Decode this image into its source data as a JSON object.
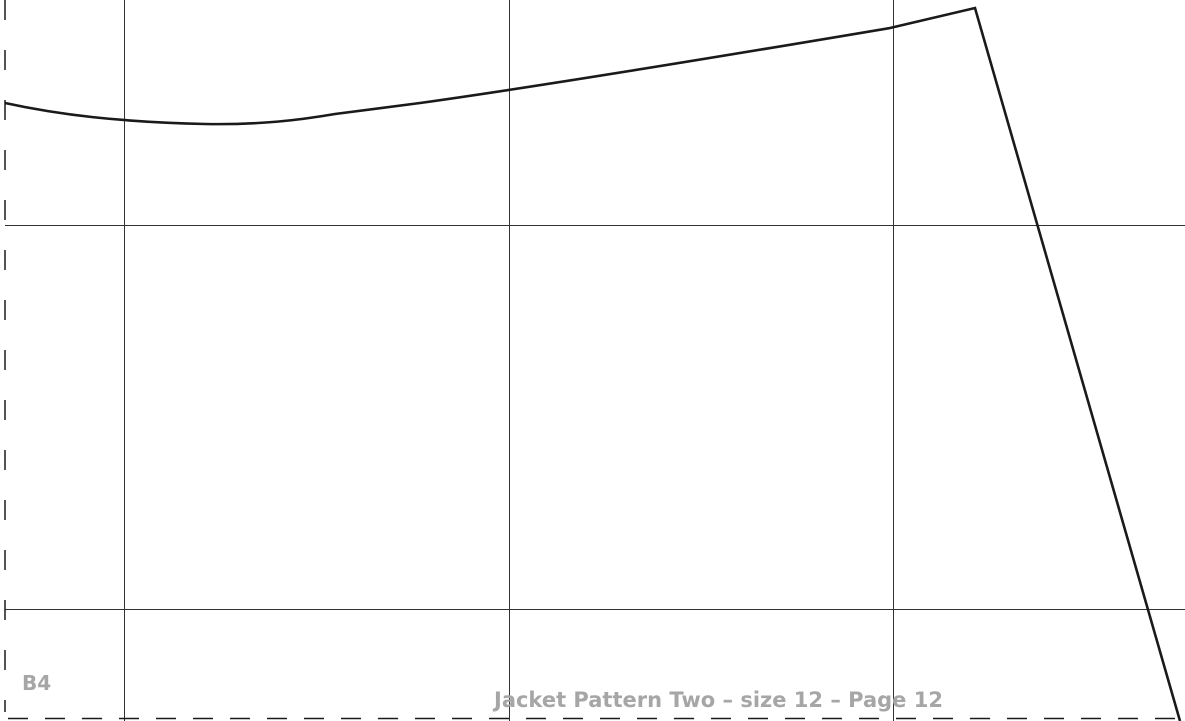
{
  "page": {
    "code": "B4",
    "footer": "Jacket Pattern Two – size 12 – Page 12"
  },
  "colors": {
    "pattern_line": "#1a1a1a",
    "grid_line": "#333333",
    "label_text": "#a6a6a6",
    "background": "#ffffff"
  }
}
